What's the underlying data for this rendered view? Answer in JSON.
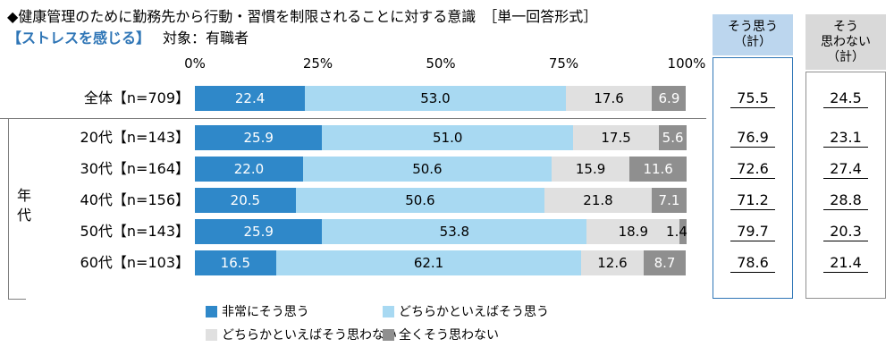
{
  "title": "◆健康管理のために勤務先から行動・習慣を制限されることに対する意識　［単一回答形式］",
  "subtitle": {
    "condition": "【ストレスを感じる】",
    "target": "対象：有職者"
  },
  "summary": {
    "agree_header": "そう思う\n（計）",
    "disagree_header": "そう\n思わない\n（計）"
  },
  "colors": {
    "strongly_agree": "#2f88c9",
    "somewhat_agree": "#a8d9f2",
    "somewhat_disagree": "#e0e0e0",
    "strongly_disagree": "#8f8f8f",
    "agree_header_bg": "#bcd6ee",
    "disagree_header_bg": "#d9d9d9",
    "agree_box_border": "#2e75b6",
    "disagree_box_border": "#909090",
    "condition_text": "#2e75b6"
  },
  "chart_data": {
    "type": "bar",
    "stacked": true,
    "orientation": "horizontal",
    "unit": "%",
    "xlim": [
      0,
      100
    ],
    "x_ticks": [
      "0%",
      "25%",
      "50%",
      "75%",
      "100%"
    ],
    "group_label": "年代",
    "categories": [
      "全体【n=709】",
      "20代【n=143】",
      "30代【n=164】",
      "40代【n=156】",
      "50代【n=143】",
      "60代【n=103】"
    ],
    "series": [
      {
        "name": "非常にそう思う",
        "color": "#2f88c9",
        "label_color": "#ffffff",
        "values": [
          22.4,
          25.9,
          22.0,
          20.5,
          25.9,
          16.5
        ]
      },
      {
        "name": "どちらかといえばそう思う",
        "color": "#a8d9f2",
        "label_color": "#000000",
        "values": [
          53.0,
          51.0,
          50.6,
          50.6,
          53.8,
          62.1
        ]
      },
      {
        "name": "どちらかといえばそう思わない",
        "color": "#e0e0e0",
        "label_color": "#000000",
        "values": [
          17.6,
          17.5,
          15.9,
          21.8,
          18.9,
          12.6
        ]
      },
      {
        "name": "全くそう思わない",
        "color": "#8f8f8f",
        "label_color": "#ffffff",
        "values": [
          6.9,
          5.6,
          11.6,
          7.1,
          1.4,
          8.7
        ]
      }
    ],
    "agree_total": {
      "label": "そう思う（計）",
      "values": [
        75.5,
        76.9,
        72.6,
        71.2,
        79.7,
        78.6
      ]
    },
    "disagree_total": {
      "label": "そう思わない（計）",
      "values": [
        24.5,
        23.1,
        27.4,
        28.8,
        20.3,
        21.4
      ]
    }
  }
}
